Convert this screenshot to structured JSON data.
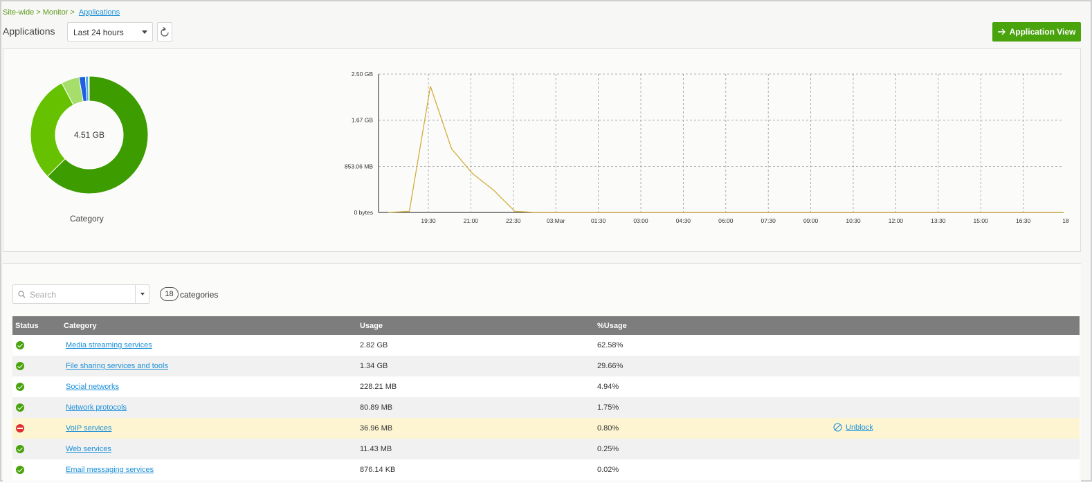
{
  "breadcrumb": {
    "site": "Site-wide",
    "sep": ">",
    "monitor": "Monitor",
    "current": "Applications"
  },
  "page_title": "Applications",
  "range_select": {
    "value": "Last 24 hours"
  },
  "app_view_button": {
    "label": "Application View",
    "color": "#49a30d"
  },
  "donut": {
    "center_text": "4.51 GB",
    "label": "Category",
    "colors": [
      "#3c9c00",
      "#66c200",
      "#a6de6b",
      "#1f5fe0",
      "#49a8f0"
    ],
    "segments": [
      62.58,
      29.66,
      4.94,
      1.75,
      0.8,
      0.25,
      0.02
    ]
  },
  "chart_data": {
    "type": "line",
    "title": "",
    "xlabel": "",
    "ylabel": "",
    "yticks": [
      "2.50 GB",
      "1.67 GB",
      "853.06 MB",
      "0 bytes"
    ],
    "ylim_gb": [
      0,
      2.5
    ],
    "xticks": [
      "19:30",
      "21:00",
      "22:30",
      "03:Mar",
      "01:30",
      "03:00",
      "04:30",
      "06:00",
      "07:30",
      "09:00",
      "10:30",
      "12:00",
      "13:30",
      "15:00",
      "16:30",
      "18"
    ],
    "line_color": "#d2ad3c",
    "grid": true,
    "points_gb": [
      [
        0,
        0
      ],
      [
        1,
        0.02
      ],
      [
        2,
        2.28
      ],
      [
        3,
        1.15
      ],
      [
        4,
        0.7
      ],
      [
        5,
        0.4
      ],
      [
        6,
        0.02
      ],
      [
        7,
        0.0
      ],
      [
        8,
        0
      ],
      [
        9,
        0
      ],
      [
        10,
        0
      ],
      [
        11,
        0
      ],
      [
        12,
        0
      ],
      [
        13,
        0
      ],
      [
        14,
        0
      ],
      [
        15,
        0
      ],
      [
        16,
        0
      ],
      [
        17,
        0
      ],
      [
        18,
        0
      ],
      [
        19,
        0
      ],
      [
        20,
        0
      ],
      [
        21,
        0
      ],
      [
        22,
        0
      ],
      [
        23,
        0
      ],
      [
        24,
        0
      ],
      [
        25,
        0
      ],
      [
        26,
        0
      ],
      [
        27,
        0
      ],
      [
        28,
        0
      ],
      [
        29,
        0
      ],
      [
        30,
        0
      ],
      [
        31,
        0
      ],
      [
        32,
        0
      ]
    ]
  },
  "search": {
    "placeholder": "Search"
  },
  "count": {
    "value": "18",
    "label": "categories"
  },
  "table": {
    "headers": {
      "status": "Status",
      "category": "Category",
      "usage": "Usage",
      "pct": "%Usage"
    },
    "rows": [
      {
        "status": "ok",
        "category": "Media streaming services",
        "usage": "2.82 GB",
        "pct": "62.58%",
        "action": ""
      },
      {
        "status": "ok",
        "category": "File sharing services and tools",
        "usage": "1.34 GB",
        "pct": "29.66%",
        "action": ""
      },
      {
        "status": "ok",
        "category": "Social networks",
        "usage": "228.21 MB",
        "pct": "4.94%",
        "action": ""
      },
      {
        "status": "ok",
        "category": "Network protocols",
        "usage": "80.89 MB",
        "pct": "1.75%",
        "action": ""
      },
      {
        "status": "blocked",
        "category": "VoIP services",
        "usage": "36.96 MB",
        "pct": "0.80%",
        "action": "Unblock"
      },
      {
        "status": "ok",
        "category": "Web services",
        "usage": "11.43 MB",
        "pct": "0.25%",
        "action": ""
      },
      {
        "status": "ok",
        "category": "Email messaging services",
        "usage": "876.14 KB",
        "pct": "0.02%",
        "action": ""
      }
    ]
  }
}
